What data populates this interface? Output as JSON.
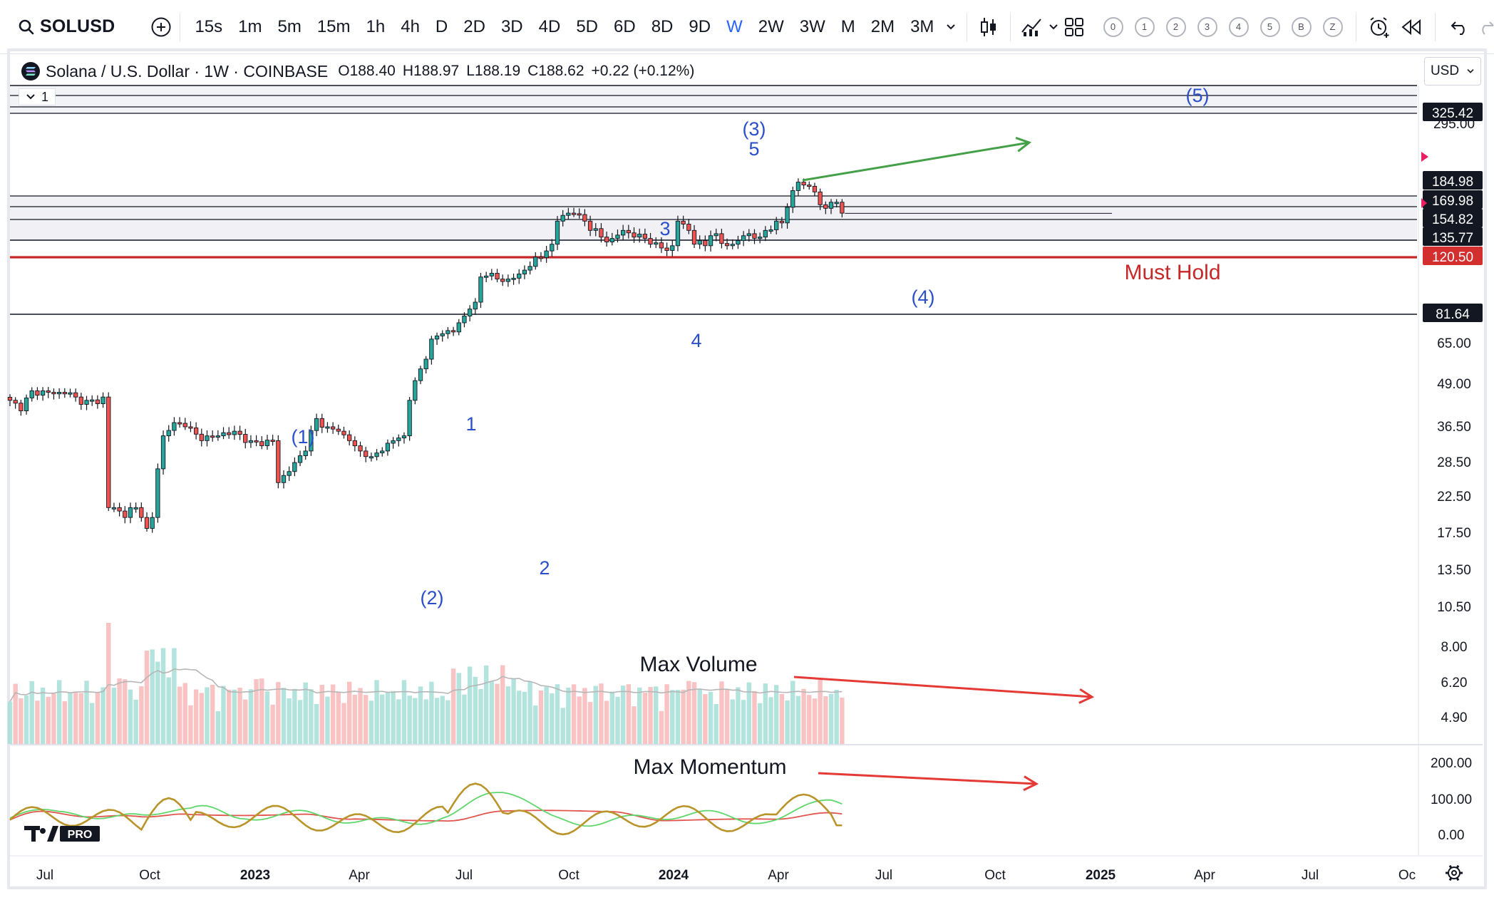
{
  "toolbar": {
    "symbol": "SOLUSD",
    "intervals": [
      "15s",
      "1m",
      "5m",
      "15m",
      "1h",
      "4h",
      "D",
      "2D",
      "3D",
      "4D",
      "5D",
      "6D",
      "8D",
      "9D",
      "W",
      "2W",
      "3W",
      "M",
      "2M",
      "3M"
    ],
    "active_interval": "W",
    "layout_slots": [
      "0",
      "1",
      "2",
      "3",
      "4",
      "5",
      "B",
      "Z"
    ]
  },
  "legend": {
    "title": "Solana / U.S. Dollar · 1W · COINBASE",
    "open": "O188.40",
    "high": "H188.97",
    "low": "L188.19",
    "close": "C188.62",
    "change": "+0.22 (+0.12%)",
    "pane_count": "1"
  },
  "currency": "USD",
  "price_axis": {
    "ticks": [
      "295.00",
      "65.00",
      "49.00",
      "36.50",
      "28.50",
      "22.50",
      "17.50",
      "13.50",
      "10.50",
      "8.00",
      "6.20",
      "4.90"
    ],
    "labels": [
      {
        "text": "325.42",
        "color": "#131722"
      },
      {
        "text": "184.98",
        "color": "#131722"
      },
      {
        "text": "169.98",
        "color": "#131722"
      },
      {
        "text": "154.82",
        "color": "#131722"
      },
      {
        "text": "135.77",
        "color": "#131722"
      },
      {
        "text": "120.50",
        "color": "#d32f2f"
      },
      {
        "text": "81.64",
        "color": "#131722"
      }
    ]
  },
  "momentum_axis": {
    "ticks": [
      "200.00",
      "100.00",
      "0.00"
    ]
  },
  "time_axis": {
    "labels": [
      {
        "text": "Jul",
        "bold": false
      },
      {
        "text": "Oct",
        "bold": false
      },
      {
        "text": "2023",
        "bold": true
      },
      {
        "text": "Apr",
        "bold": false
      },
      {
        "text": "Jul",
        "bold": false
      },
      {
        "text": "Oct",
        "bold": false
      },
      {
        "text": "2024",
        "bold": true
      },
      {
        "text": "Apr",
        "bold": false
      },
      {
        "text": "Jul",
        "bold": false
      },
      {
        "text": "Oct",
        "bold": false
      },
      {
        "text": "2025",
        "bold": true
      },
      {
        "text": "Apr",
        "bold": false
      },
      {
        "text": "Jul",
        "bold": false
      },
      {
        "text": "Oc",
        "bold": false
      }
    ]
  },
  "annotations": {
    "wave_labels": [
      "(1)",
      "(2)",
      "1",
      "2",
      "3",
      "4",
      "(3)",
      "5",
      "(4)",
      "(5)"
    ],
    "must_hold": "Must Hold",
    "max_volume": "Max Volume",
    "max_momentum": "Max Momentum"
  },
  "watermark": "PRO",
  "colors": {
    "up": "#26a69a",
    "down": "#ef5350",
    "wave": "#2a4fc9",
    "must_hold": "#c62828",
    "green_arrow": "#43a047",
    "red_arrow": "#e53935",
    "accent": "#2962ff"
  }
}
